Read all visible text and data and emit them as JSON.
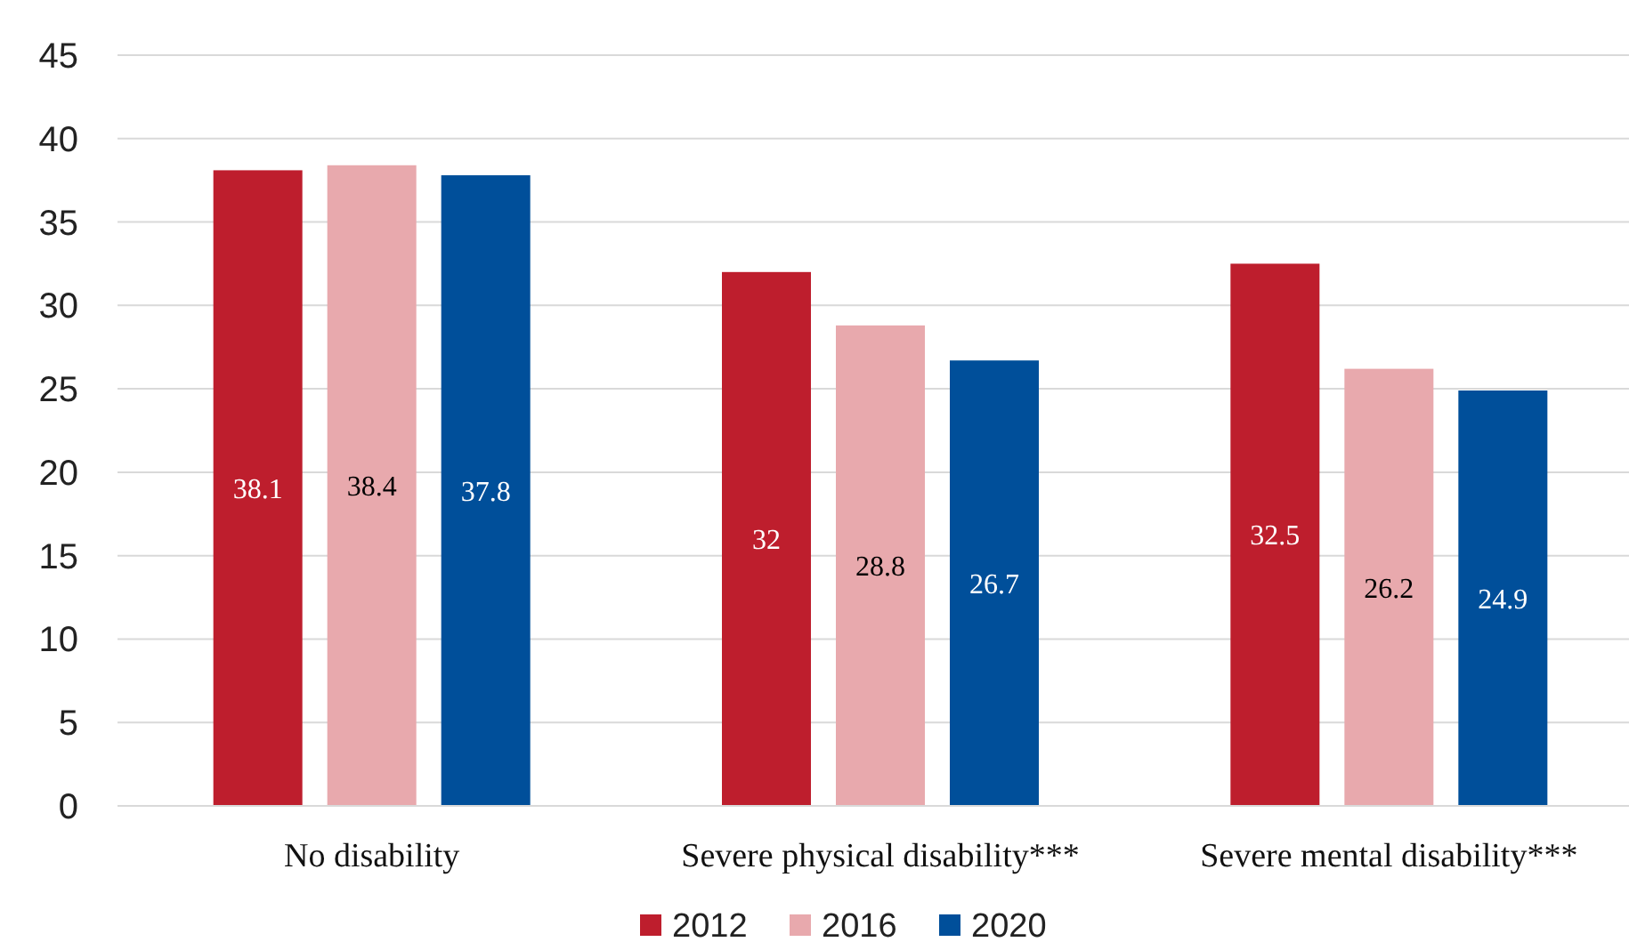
{
  "chart_data": {
    "type": "bar",
    "categories": [
      "No disability",
      "Severe physical disability***",
      "Severe mental disability***"
    ],
    "series": [
      {
        "name": "2012",
        "color": "#be1e2d",
        "values": [
          38.1,
          32,
          32.5
        ]
      },
      {
        "name": "2016",
        "color": "#e8a9ad",
        "values": [
          38.4,
          28.8,
          26.2
        ]
      },
      {
        "name": "2020",
        "color": "#004f9a",
        "values": [
          37.8,
          26.7,
          24.9
        ]
      }
    ],
    "ylim": [
      0,
      45
    ],
    "yticks": [
      0,
      5,
      10,
      15,
      20,
      25,
      30,
      35,
      40,
      45
    ],
    "grid": "y",
    "legend": "bottom",
    "data_labels": true
  }
}
